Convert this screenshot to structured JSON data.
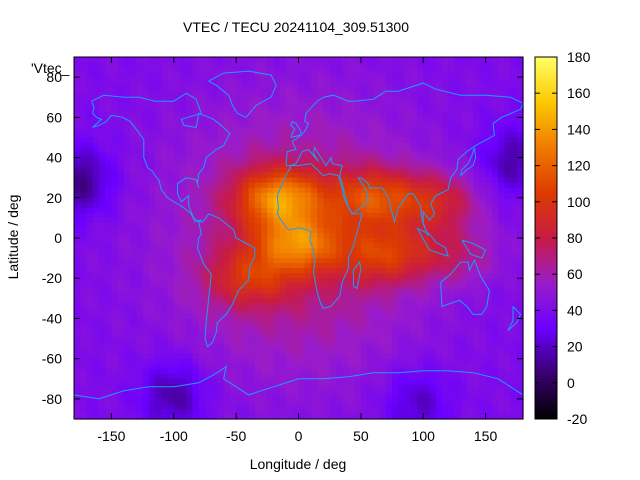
{
  "chart_data": {
    "type": "heatmap",
    "title": "VTEC / TECU 20241104_309.51300",
    "key_label": "'Vtec_",
    "xlabel": "Longitude / deg",
    "ylabel": "Latitude / deg",
    "xlim": [
      -180,
      180
    ],
    "ylim": [
      -90,
      90
    ],
    "xticks": [
      -150,
      -100,
      -50,
      0,
      50,
      100,
      150
    ],
    "yticks": [
      -80,
      -60,
      -40,
      -20,
      0,
      20,
      40,
      60,
      80
    ],
    "colorbar": {
      "range": [
        -20,
        180
      ],
      "ticks": [
        -20,
        0,
        20,
        40,
        60,
        80,
        100,
        120,
        140,
        160,
        180
      ],
      "palette": [
        "#000000",
        "#3a0070",
        "#6a00ff",
        "#9a1cc9",
        "#c81b44",
        "#dd3b00",
        "#f17a00",
        "#fcc900",
        "#ffff66"
      ]
    },
    "field_model": {
      "background_tecu": 40,
      "polar_minima": [
        {
          "lon": -175,
          "lat": 28,
          "tecu": 8
        },
        {
          "lon": 172,
          "lat": 38,
          "tecu": 14
        },
        {
          "lon": -100,
          "lat": -78,
          "tecu": 12
        },
        {
          "lon": 95,
          "lat": -82,
          "tecu": 18
        }
      ],
      "crests": [
        {
          "lon": -15,
          "lat": 20,
          "tecu": 135
        },
        {
          "lon": 0,
          "lat": -3,
          "tecu": 125
        },
        {
          "lon": -40,
          "lat": -20,
          "tecu": 100
        },
        {
          "lon": 60,
          "lat": 20,
          "tecu": 115
        },
        {
          "lon": 110,
          "lat": 18,
          "tecu": 105
        },
        {
          "lon": 70,
          "lat": -8,
          "tecu": 110
        },
        {
          "lon": 125,
          "lat": -8,
          "tecu": 90
        }
      ]
    }
  }
}
